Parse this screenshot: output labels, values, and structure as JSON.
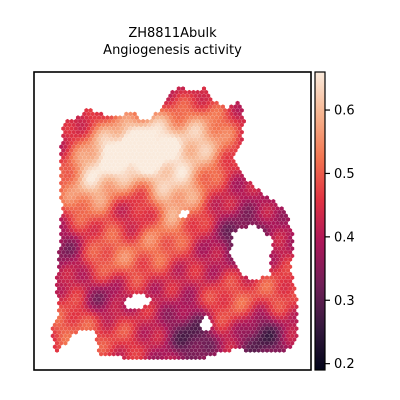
{
  "chart_data": {
    "type": "heatmap",
    "title": [
      "ZH8811Abulk",
      "Angiogenesis activity"
    ],
    "xlabel": "",
    "ylabel": "",
    "colorbar": {
      "range": [
        0.19,
        0.66
      ],
      "ticks": [
        0.2,
        0.3,
        0.4,
        0.5,
        0.6
      ],
      "tick_labels": [
        "0.2",
        "0.3",
        "0.4",
        "0.5",
        "0.6"
      ],
      "colormap": "rocket",
      "colormap_stops": [
        "#03051a",
        "#35193e",
        "#701f57",
        "#ad1759",
        "#e13342",
        "#f37651",
        "#f6b48f",
        "#faebdd"
      ],
      "placement": "right"
    },
    "grid": false,
    "spot_marker": "hexagon",
    "field_peaks": [
      {
        "x": 0.42,
        "y": 0.24,
        "value": 0.64
      },
      {
        "x": 0.28,
        "y": 0.28,
        "value": 0.61
      },
      {
        "x": 0.52,
        "y": 0.4,
        "value": 0.57
      },
      {
        "x": 0.18,
        "y": 0.4,
        "value": 0.55
      },
      {
        "x": 0.62,
        "y": 0.22,
        "value": 0.58
      },
      {
        "x": 0.26,
        "y": 0.65,
        "value": 0.53
      },
      {
        "x": 0.44,
        "y": 0.56,
        "value": 0.52
      },
      {
        "x": 0.7,
        "y": 0.8,
        "value": 0.5
      },
      {
        "x": 0.12,
        "y": 0.85,
        "value": 0.5
      },
      {
        "x": 0.88,
        "y": 0.75,
        "value": 0.49
      },
      {
        "x": 0.3,
        "y": 0.88,
        "value": 0.47
      }
    ],
    "field_lows": [
      {
        "x": 0.25,
        "y": 0.75,
        "value": 0.26
      },
      {
        "x": 0.58,
        "y": 0.88,
        "value": 0.26
      },
      {
        "x": 0.82,
        "y": 0.88,
        "value": 0.24
      },
      {
        "x": 0.75,
        "y": 0.56,
        "value": 0.3
      },
      {
        "x": 0.12,
        "y": 0.6,
        "value": 0.32
      },
      {
        "x": 0.38,
        "y": 0.48,
        "value": 0.32
      }
    ],
    "field_base": 0.4
  }
}
